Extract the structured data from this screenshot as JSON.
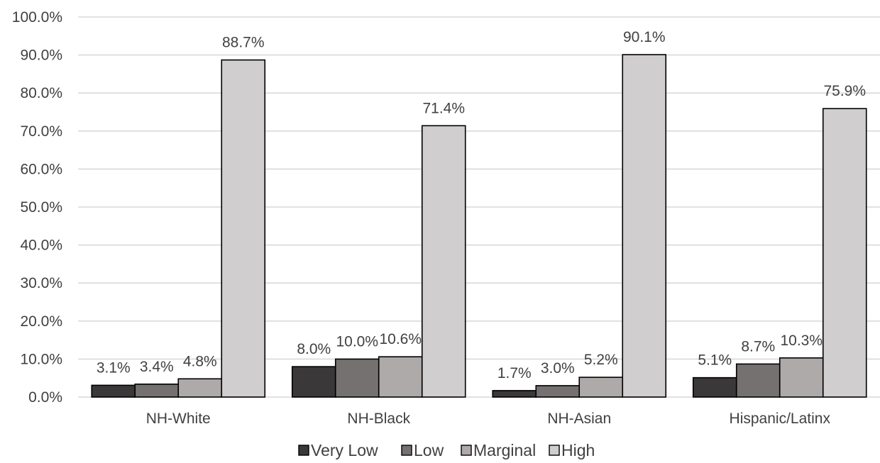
{
  "chart_data": {
    "type": "bar",
    "categories": [
      "NH-White",
      "NH-Black",
      "NH-Asian",
      "Hispanic/Latinx"
    ],
    "series": [
      {
        "name": "Very Low",
        "values": [
          3.1,
          8.0,
          1.7,
          5.1
        ],
        "labels": [
          "3.1%",
          "8.0%",
          "1.7%",
          "5.1%"
        ],
        "color": "#3a3838"
      },
      {
        "name": "Low",
        "values": [
          3.4,
          10.0,
          3.0,
          8.7
        ],
        "labels": [
          "3.4%",
          "10.0%",
          "3.0%",
          "8.7%"
        ],
        "color": "#767171"
      },
      {
        "name": "Marginal",
        "values": [
          4.8,
          10.6,
          5.2,
          10.3
        ],
        "labels": [
          "4.8%",
          "10.6%",
          "5.2%",
          "10.3%"
        ],
        "color": "#aeaaaa"
      },
      {
        "name": "High",
        "values": [
          88.7,
          71.4,
          90.1,
          75.9
        ],
        "labels": [
          "88.7%",
          "71.4%",
          "90.1%",
          "75.9%"
        ],
        "color": "#d0cece"
      }
    ],
    "y_ticks": [
      "0.0%",
      "10.0%",
      "20.0%",
      "30.0%",
      "40.0%",
      "50.0%",
      "60.0%",
      "70.0%",
      "80.0%",
      "90.0%",
      "100.0%"
    ],
    "ylim": [
      0,
      100
    ],
    "grid": true,
    "legend_position": "bottom",
    "title": "",
    "xlabel": "",
    "ylabel": ""
  }
}
